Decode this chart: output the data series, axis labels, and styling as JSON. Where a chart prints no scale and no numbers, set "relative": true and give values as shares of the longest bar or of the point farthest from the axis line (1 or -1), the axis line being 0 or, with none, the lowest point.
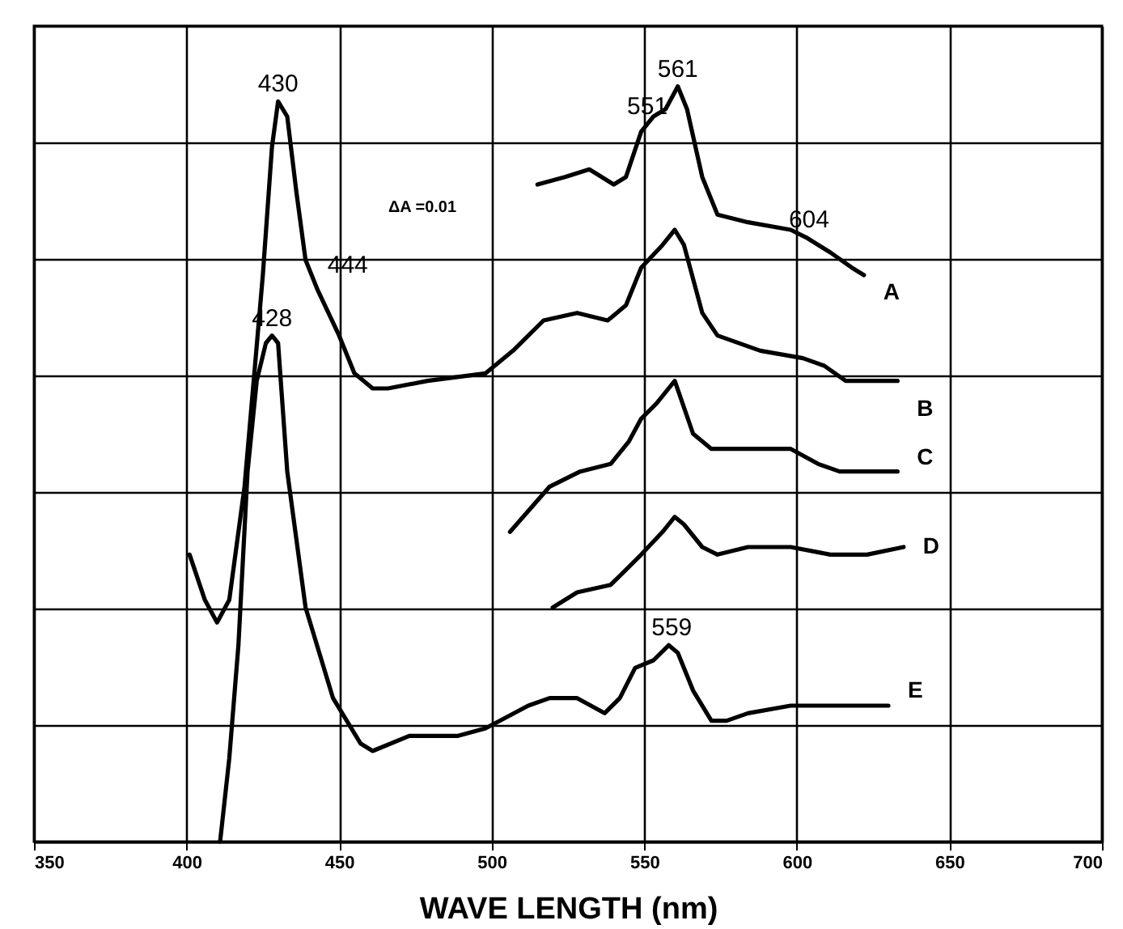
{
  "chart_data": {
    "type": "line",
    "relative": true,
    "xlabel": "WAVE LENGTH (nm)",
    "xlim": [
      350,
      700
    ],
    "xticks": [
      350,
      400,
      450,
      500,
      550,
      600,
      650,
      700
    ],
    "grid": true,
    "line_style": "solid",
    "marker": "none",
    "annotations": [
      {
        "text": "430",
        "x": 430,
        "y": 0.98
      },
      {
        "text": "444",
        "x": 443,
        "y": 0.74
      },
      {
        "text": "428",
        "x": 428,
        "y": 0.67
      },
      {
        "text": "551",
        "x": 551,
        "y": 0.95
      },
      {
        "text": "561",
        "x": 561,
        "y": 1.0
      },
      {
        "text": "604",
        "x": 604,
        "y": 0.8
      },
      {
        "text": "559",
        "x": 559,
        "y": 0.26
      },
      "ΔA =0.01"
    ],
    "series": [
      {
        "name": "A",
        "color": "#000000",
        "x": [
          515,
          524,
          532,
          540,
          544,
          549,
          553,
          557,
          561,
          564,
          569,
          574,
          584,
          598,
          603,
          611,
          618,
          622
        ],
        "values": [
          0.87,
          0.88,
          0.89,
          0.87,
          0.88,
          0.94,
          0.96,
          0.97,
          1.0,
          0.97,
          0.88,
          0.83,
          0.82,
          0.81,
          0.8,
          0.78,
          0.76,
          0.75
        ]
      },
      {
        "name": "B",
        "color": "#000000",
        "x": [
          401,
          406,
          410,
          414,
          419,
          425,
          428,
          430,
          433,
          436,
          439,
          443,
          450,
          455,
          461,
          466,
          479,
          498,
          507,
          517,
          528,
          538,
          544,
          549,
          556,
          560,
          563,
          569,
          574,
          588,
          602,
          609,
          616,
          623,
          633
        ],
        "values": [
          0.38,
          0.32,
          0.29,
          0.32,
          0.47,
          0.75,
          0.92,
          0.98,
          0.96,
          0.86,
          0.77,
          0.73,
          0.67,
          0.62,
          0.6,
          0.6,
          0.61,
          0.62,
          0.65,
          0.69,
          0.7,
          0.69,
          0.71,
          0.76,
          0.79,
          0.81,
          0.79,
          0.7,
          0.67,
          0.65,
          0.64,
          0.63,
          0.61,
          0.61,
          0.61
        ]
      },
      {
        "name": "C",
        "color": "#000000",
        "x": [
          506,
          519,
          529,
          539,
          545,
          549,
          554,
          560,
          566,
          572,
          584,
          598,
          607,
          614,
          633
        ],
        "values": [
          0.41,
          0.47,
          0.49,
          0.5,
          0.53,
          0.56,
          0.58,
          0.61,
          0.54,
          0.52,
          0.52,
          0.52,
          0.5,
          0.49,
          0.49
        ]
      },
      {
        "name": "D",
        "color": "#000000",
        "x": [
          520,
          528,
          539,
          549,
          556,
          560,
          563,
          569,
          574,
          584,
          598,
          611,
          623,
          635
        ],
        "values": [
          0.31,
          0.33,
          0.34,
          0.38,
          0.41,
          0.43,
          0.42,
          0.39,
          0.38,
          0.39,
          0.39,
          0.38,
          0.38,
          0.39
        ]
      },
      {
        "name": "E",
        "color": "#000000",
        "x": [
          411,
          414,
          417,
          420,
          423,
          426,
          428,
          430,
          433,
          434,
          439,
          448,
          457,
          461,
          473,
          489,
          498,
          512,
          519,
          528,
          537,
          542,
          547,
          553,
          558,
          561,
          566,
          572,
          577,
          584,
          598,
          611,
          630
        ],
        "values": [
          0,
          0.11,
          0.26,
          0.49,
          0.61,
          0.66,
          0.67,
          0.66,
          0.49,
          0.46,
          0.31,
          0.19,
          0.13,
          0.12,
          0.14,
          0.14,
          0.15,
          0.18,
          0.19,
          0.19,
          0.17,
          0.19,
          0.23,
          0.24,
          0.26,
          0.25,
          0.2,
          0.16,
          0.16,
          0.17,
          0.18,
          0.18,
          0.18
        ]
      }
    ]
  }
}
